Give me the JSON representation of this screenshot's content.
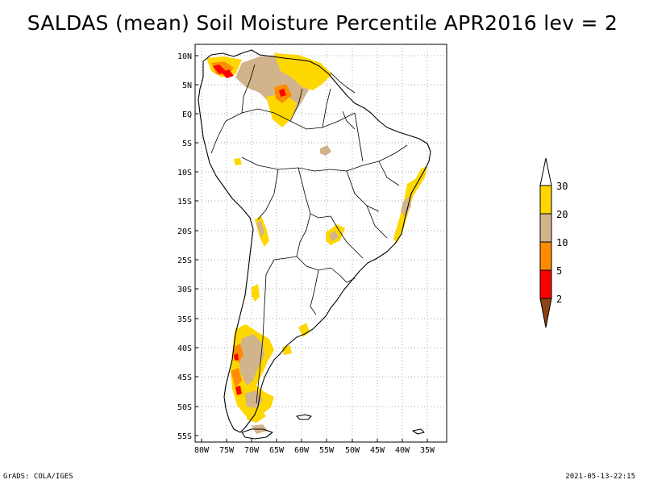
{
  "title": "SALDAS (mean) Soil Moisture Percentile APR2016 lev = 2",
  "map": {
    "lat_labels": [
      "10N",
      "5N",
      "EQ",
      "5S",
      "10S",
      "15S",
      "20S",
      "25S",
      "30S",
      "35S",
      "40S",
      "45S",
      "50S",
      "55S"
    ],
    "lon_labels": [
      "80W",
      "75W",
      "70W",
      "65W",
      "60W",
      "55W",
      "50W",
      "45W",
      "40W",
      "35W"
    ]
  },
  "colorbar": {
    "labels": [
      "30",
      "20",
      "10",
      "5",
      "2"
    ],
    "colors": [
      "#ffffff",
      "#ffd700",
      "#d2b48c",
      "#ff8c00",
      "#ff0000",
      "#8b4513"
    ]
  },
  "footer": {
    "left": "GrADS: COLA/IGES",
    "right": "2021-05-13-22:15"
  }
}
